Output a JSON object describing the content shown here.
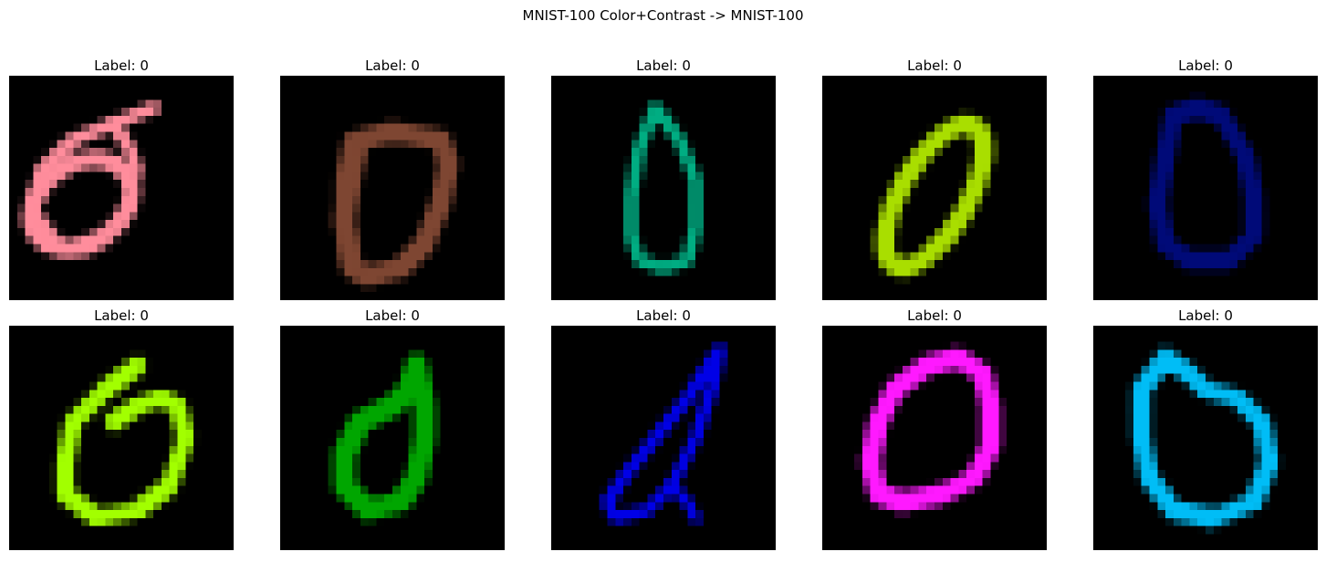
{
  "figure": {
    "title": "MNIST-100 Color+Contrast -> MNIST-100"
  },
  "panels": [
    {
      "label": "Label: 0",
      "color": "#ff8d9c",
      "shape": "loop"
    },
    {
      "label": "Label: 0",
      "color": "#7e4632",
      "shape": "d"
    },
    {
      "label": "Label: 0",
      "color": "#00ad82",
      "shape": "drop"
    },
    {
      "label": "Label: 0",
      "color": "#a9de00",
      "shape": "slant"
    },
    {
      "label": "Label: 0",
      "color": "#000a78",
      "shape": "dblob"
    },
    {
      "label": "Label: 0",
      "color": "#a2ff00",
      "shape": "loop2"
    },
    {
      "label": "Label: 0",
      "color": "#00a600",
      "shape": "blob"
    },
    {
      "label": "Label: 0",
      "color": "#0000e6",
      "shape": "thin"
    },
    {
      "label": "Label: 0",
      "color": "#ff19ff",
      "shape": "ring"
    },
    {
      "label": "Label: 0",
      "color": "#00bdf6",
      "shape": "round"
    }
  ]
}
